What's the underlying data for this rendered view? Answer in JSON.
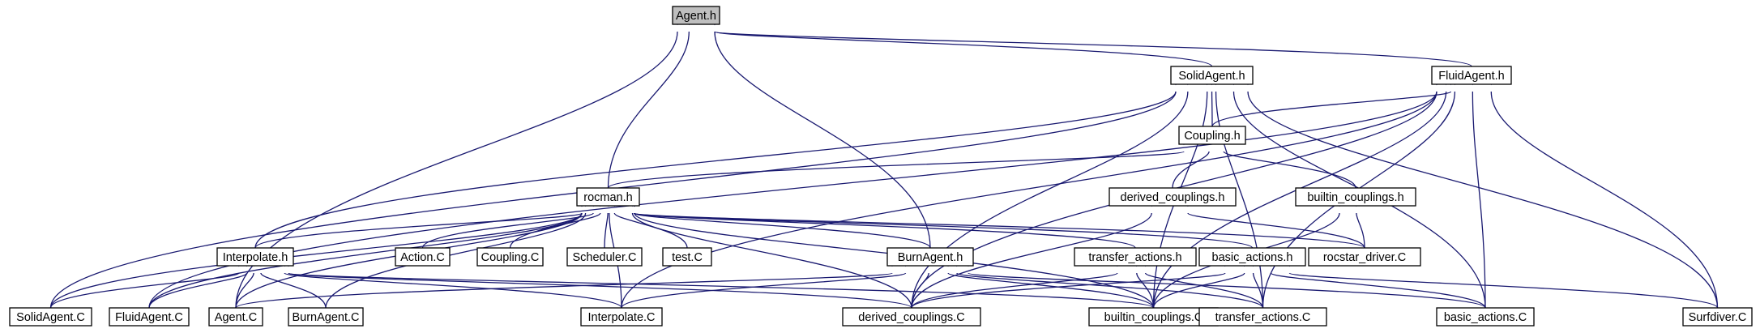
{
  "graph": {
    "type": "include-dependency-graph",
    "colors": {
      "edge": "#191970",
      "root_fill": "#bfbfbf",
      "node_fill": "#ffffff",
      "node_border": "#000000"
    },
    "nodes": [
      {
        "id": "agent_h",
        "label": "Agent.h",
        "root": true
      },
      {
        "id": "solidagent_h",
        "label": "SolidAgent.h"
      },
      {
        "id": "fluidagent_h",
        "label": "FluidAgent.h"
      },
      {
        "id": "coupling_h",
        "label": "Coupling.h"
      },
      {
        "id": "rocman_h",
        "label": "rocman.h"
      },
      {
        "id": "derived_couplings_h",
        "label": "derived_couplings.h"
      },
      {
        "id": "builtin_couplings_h",
        "label": "builtin_couplings.h"
      },
      {
        "id": "interpolate_h",
        "label": "Interpolate.h"
      },
      {
        "id": "action_c",
        "label": "Action.C"
      },
      {
        "id": "coupling_c",
        "label": "Coupling.C"
      },
      {
        "id": "scheduler_c",
        "label": "Scheduler.C"
      },
      {
        "id": "test_c",
        "label": "test.C"
      },
      {
        "id": "burnagent_h",
        "label": "BurnAgent.h"
      },
      {
        "id": "transfer_actions_h",
        "label": "transfer_actions.h"
      },
      {
        "id": "basic_actions_h",
        "label": "basic_actions.h"
      },
      {
        "id": "rocstar_driver_c",
        "label": "rocstar_driver.C"
      },
      {
        "id": "solidagent_c",
        "label": "SolidAgent.C"
      },
      {
        "id": "fluidagent_c",
        "label": "FluidAgent.C"
      },
      {
        "id": "agent_c",
        "label": "Agent.C"
      },
      {
        "id": "burnagent_c",
        "label": "BurnAgent.C"
      },
      {
        "id": "interpolate_c",
        "label": "Interpolate.C"
      },
      {
        "id": "derived_couplings_c",
        "label": "derived_couplings.C"
      },
      {
        "id": "builtin_couplings_c",
        "label": "builtin_couplings.C"
      },
      {
        "id": "transfer_actions_c",
        "label": "transfer_actions.C"
      },
      {
        "id": "basic_actions_c",
        "label": "basic_actions.C"
      },
      {
        "id": "surfdiver_c",
        "label": "Surfdiver.C"
      }
    ],
    "edges": [
      [
        "solidagent_h",
        "agent_h"
      ],
      [
        "fluidagent_h",
        "agent_h"
      ],
      [
        "rocman_h",
        "agent_h"
      ],
      [
        "burnagent_h",
        "agent_h"
      ],
      [
        "agent_c",
        "agent_h"
      ],
      [
        "coupling_h",
        "solidagent_h"
      ],
      [
        "interpolate_h",
        "solidagent_h"
      ],
      [
        "solidagent_c",
        "solidagent_h"
      ],
      [
        "derived_couplings_c",
        "solidagent_h"
      ],
      [
        "builtin_couplings_c",
        "solidagent_h"
      ],
      [
        "transfer_actions_c",
        "solidagent_h"
      ],
      [
        "basic_actions_c",
        "solidagent_h"
      ],
      [
        "surfdiver_c",
        "solidagent_h"
      ],
      [
        "coupling_h",
        "fluidagent_h"
      ],
      [
        "fluidagent_c",
        "fluidagent_h"
      ],
      [
        "interpolate_c",
        "fluidagent_h"
      ],
      [
        "derived_couplings_c",
        "fluidagent_h"
      ],
      [
        "builtin_couplings_c",
        "fluidagent_h"
      ],
      [
        "transfer_actions_c",
        "fluidagent_h"
      ],
      [
        "basic_actions_c",
        "fluidagent_h"
      ],
      [
        "surfdiver_c",
        "fluidagent_h"
      ],
      [
        "rocman_h",
        "coupling_h"
      ],
      [
        "derived_couplings_h",
        "coupling_h"
      ],
      [
        "builtin_couplings_h",
        "coupling_h"
      ],
      [
        "derived_couplings_c",
        "derived_couplings_h"
      ],
      [
        "rocstar_driver_c",
        "derived_couplings_h"
      ],
      [
        "rocstar_driver_c",
        "builtin_couplings_h"
      ],
      [
        "builtin_couplings_c",
        "builtin_couplings_h"
      ],
      [
        "interpolate_h",
        "rocman_h"
      ],
      [
        "action_c",
        "rocman_h"
      ],
      [
        "coupling_c",
        "rocman_h"
      ],
      [
        "scheduler_c",
        "rocman_h"
      ],
      [
        "test_c",
        "rocman_h"
      ],
      [
        "burnagent_h",
        "rocman_h"
      ],
      [
        "transfer_actions_h",
        "rocman_h"
      ],
      [
        "basic_actions_h",
        "rocman_h"
      ],
      [
        "rocstar_driver_c",
        "rocman_h"
      ],
      [
        "solidagent_c",
        "rocman_h"
      ],
      [
        "fluidagent_c",
        "rocman_h"
      ],
      [
        "agent_c",
        "rocman_h"
      ],
      [
        "burnagent_c",
        "rocman_h"
      ],
      [
        "interpolate_c",
        "rocman_h"
      ],
      [
        "derived_couplings_c",
        "rocman_h"
      ],
      [
        "builtin_couplings_c",
        "rocman_h"
      ],
      [
        "solidagent_c",
        "interpolate_h"
      ],
      [
        "fluidagent_c",
        "interpolate_h"
      ],
      [
        "agent_c",
        "interpolate_h"
      ],
      [
        "burnagent_c",
        "interpolate_h"
      ],
      [
        "interpolate_c",
        "interpolate_h"
      ],
      [
        "derived_couplings_c",
        "interpolate_h"
      ],
      [
        "builtin_couplings_c",
        "interpolate_h"
      ],
      [
        "agent_c",
        "burnagent_h"
      ],
      [
        "interpolate_c",
        "burnagent_h"
      ],
      [
        "derived_couplings_c",
        "burnagent_h"
      ],
      [
        "builtin_couplings_c",
        "burnagent_h"
      ],
      [
        "transfer_actions_c",
        "burnagent_h"
      ],
      [
        "basic_actions_c",
        "burnagent_h"
      ],
      [
        "derived_couplings_c",
        "transfer_actions_h"
      ],
      [
        "builtin_couplings_c",
        "transfer_actions_h"
      ],
      [
        "transfer_actions_c",
        "transfer_actions_h"
      ],
      [
        "derived_couplings_c",
        "basic_actions_h"
      ],
      [
        "builtin_couplings_c",
        "basic_actions_h"
      ],
      [
        "transfer_actions_c",
        "basic_actions_h"
      ],
      [
        "basic_actions_c",
        "basic_actions_h"
      ],
      [
        "surfdiver_c",
        "basic_actions_h"
      ]
    ]
  }
}
